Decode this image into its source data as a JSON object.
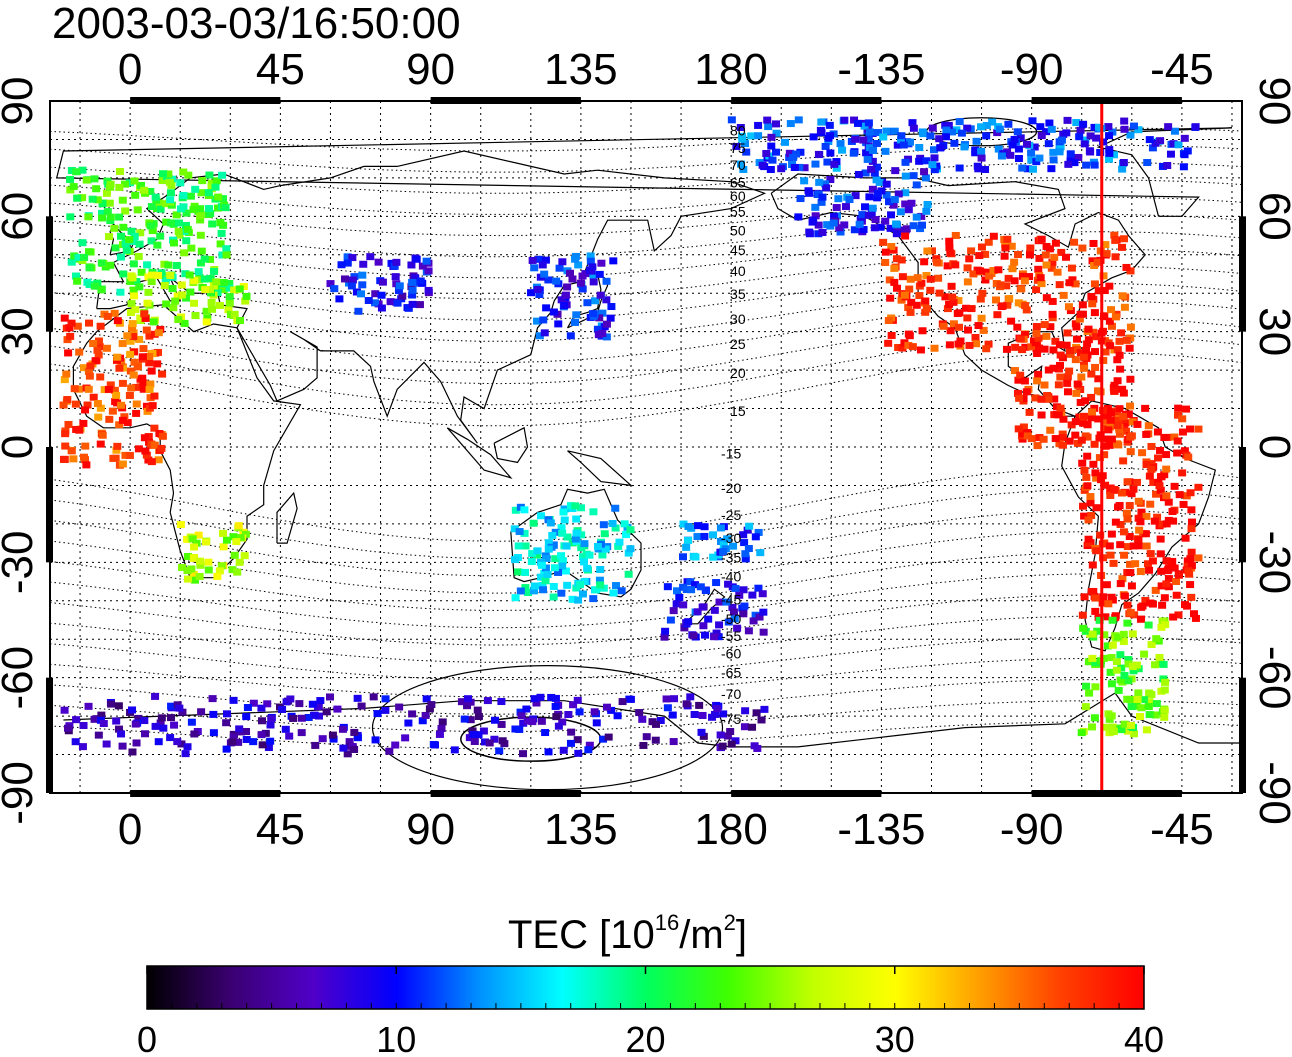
{
  "title": "2003-03-03/16:50:00",
  "colorbar": {
    "label_main": "TEC  [10",
    "label_exp": "16",
    "label_mid": "/m",
    "label_exp2": "2",
    "label_end": "]",
    "min": 0,
    "max": 40,
    "ticks": [
      "0",
      "10",
      "20",
      "30",
      "40"
    ],
    "colors": [
      "#000000",
      "#3a0070",
      "#5000c8",
      "#0000ff",
      "#0090ff",
      "#00ffff",
      "#00ff60",
      "#40ff00",
      "#c0ff00",
      "#ffff00",
      "#ffa000",
      "#ff4000",
      "#ff0000"
    ]
  },
  "axes": {
    "top_longitudes": [
      "0",
      "45",
      "90",
      "135",
      "180",
      "-135",
      "-90",
      "-45"
    ],
    "bottom_longitudes": [
      "0",
      "45",
      "90",
      "135",
      "180",
      "-135",
      "-90",
      "-45"
    ],
    "left_latitudes": [
      "90",
      "60",
      "30",
      "0",
      "-30",
      "-60",
      "-90"
    ],
    "right_latitudes": [
      "90",
      "60",
      "30",
      "0",
      "-30",
      "-60",
      "-90"
    ],
    "lon_ticks": [
      0,
      45,
      90,
      135,
      180,
      225,
      270,
      315
    ],
    "lat_ticks": [
      90,
      60,
      30,
      0,
      -30,
      -60,
      -90
    ],
    "grid": true
  },
  "contours": {
    "labels_north": [
      "80",
      "75",
      "70",
      "65",
      "60",
      "55",
      "50",
      "45",
      "40",
      "35",
      "30",
      "25",
      "20",
      "15"
    ],
    "labels_south": [
      "-15",
      "-20",
      "-25",
      "-30",
      "-35",
      "-40",
      "-45",
      "-50",
      "-55",
      "-60",
      "-65",
      "-70",
      "-75"
    ]
  },
  "terminator_lon": -69,
  "chart_data": {
    "type": "heatmap",
    "title": "2003-03-03/16:50:00",
    "xlabel": "",
    "ylabel": "",
    "xlim": [
      -24,
      333
    ],
    "ylim": [
      -90,
      90
    ],
    "value_label": "TEC  [10^16/m^2]",
    "value_range": [
      0,
      40
    ],
    "regions": [
      {
        "lon": [
          -18,
          30
        ],
        "lat": [
          40,
          72
        ],
        "value": 22
      },
      {
        "lon": [
          0,
          35
        ],
        "lat": [
          32,
          45
        ],
        "value": 26
      },
      {
        "lon": [
          -20,
          10
        ],
        "lat": [
          -5,
          35
        ],
        "value": 37
      },
      {
        "lon": [
          15,
          35
        ],
        "lat": [
          -35,
          -20
        ],
        "value": 27
      },
      {
        "lon": [
          60,
          90
        ],
        "lat": [
          35,
          50
        ],
        "value": 9
      },
      {
        "lon": [
          120,
          145
        ],
        "lat": [
          28,
          50
        ],
        "value": 10
      },
      {
        "lon": [
          200,
          240
        ],
        "lat": [
          55,
          72
        ],
        "value": 10
      },
      {
        "lon": [
          225,
          300
        ],
        "lat": [
          25,
          55
        ],
        "value": 38
      },
      {
        "lon": [
          265,
          300
        ],
        "lat": [
          0,
          30
        ],
        "value": 39
      },
      {
        "lon": [
          285,
          320
        ],
        "lat": [
          -45,
          10
        ],
        "value": 39
      },
      {
        "lon": [
          285,
          310
        ],
        "lat": [
          -75,
          -45
        ],
        "value": 24
      },
      {
        "lon": [
          115,
          150
        ],
        "lat": [
          -40,
          -15
        ],
        "value": 16
      },
      {
        "lon": [
          160,
          190
        ],
        "lat": [
          -50,
          -35
        ],
        "value": 9
      },
      {
        "lon": [
          165,
          190
        ],
        "lat": [
          -30,
          -20
        ],
        "value": 12
      },
      {
        "lon": [
          -20,
          190
        ],
        "lat": [
          -80,
          -65
        ],
        "value": 7
      },
      {
        "lon": [
          180,
          320
        ],
        "lat": [
          72,
          85
        ],
        "value": 11
      }
    ]
  }
}
